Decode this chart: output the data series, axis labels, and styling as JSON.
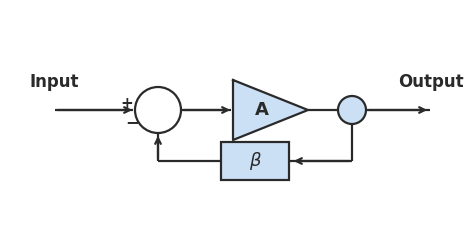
{
  "bg_color": "#ffffff",
  "line_color": "#2a2a2a",
  "fill_color": "#cce0f5",
  "circle_fill": "#ffffff",
  "out_circle_fill": "#cce0f5",
  "input_label": "Input",
  "output_label": "Output",
  "amp_label": "A",
  "beta_label": "β",
  "plus_label": "+",
  "minus_label": "−",
  "line_width": 1.6
}
